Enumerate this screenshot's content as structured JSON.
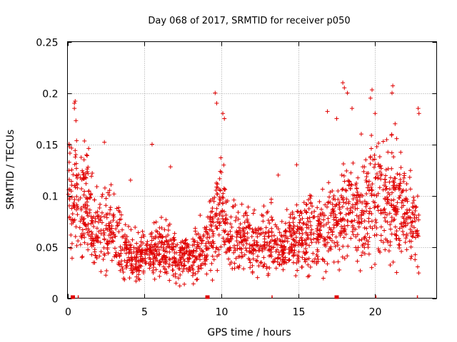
{
  "chart_data": {
    "type": "scatter",
    "title": "Day 068 of 2017, SRMTID for receiver p050",
    "xlabel": "GPS time / hours",
    "ylabel": "SRMTID / TECUs",
    "xlim": [
      0,
      24
    ],
    "ylim": [
      0,
      0.25
    ],
    "grid": true,
    "marker": "+",
    "color": "#e00000",
    "x_ticks": [
      0,
      5,
      10,
      15,
      20
    ],
    "x_tick_labels": [
      "0",
      "5",
      "10",
      "15",
      "20"
    ],
    "y_ticks": [
      0,
      0.05,
      0.1,
      0.15,
      0.2,
      0.25
    ],
    "y_tick_labels": [
      "0",
      "0.05",
      "0.1",
      "0.15",
      "0.2",
      "0.25"
    ],
    "bottom_markers": [
      {
        "x": 0.35,
        "kind": "block"
      },
      {
        "x": 0.7,
        "kind": "tick"
      },
      {
        "x": 9.1,
        "kind": "block"
      },
      {
        "x": 13.3,
        "kind": "tick"
      },
      {
        "x": 17.5,
        "kind": "block"
      },
      {
        "x": 20.05,
        "kind": "tick"
      },
      {
        "x": 22.75,
        "kind": "tick"
      }
    ],
    "envelope_x": [
      0,
      0.5,
      1,
      2,
      3,
      3.5,
      4,
      5,
      5.5,
      6,
      7,
      8,
      9,
      9.5,
      10,
      10.5,
      11,
      12,
      13,
      14,
      15,
      16,
      17,
      18,
      19,
      20,
      21,
      22,
      22.8
    ],
    "envelope_mean": [
      0.1,
      0.1,
      0.095,
      0.065,
      0.07,
      0.055,
      0.04,
      0.04,
      0.045,
      0.05,
      0.04,
      0.04,
      0.055,
      0.07,
      0.09,
      0.06,
      0.055,
      0.055,
      0.06,
      0.05,
      0.06,
      0.065,
      0.065,
      0.085,
      0.08,
      0.1,
      0.1,
      0.09,
      0.065
    ],
    "highlight_points": [
      {
        "x": 0.45,
        "y": 0.19
      },
      {
        "x": 0.5,
        "y": 0.192
      },
      {
        "x": 0.45,
        "y": 0.185
      },
      {
        "x": 0.55,
        "y": 0.173
      },
      {
        "x": 9.6,
        "y": 0.2
      },
      {
        "x": 9.7,
        "y": 0.19
      },
      {
        "x": 10.1,
        "y": 0.18
      },
      {
        "x": 10.2,
        "y": 0.175
      },
      {
        "x": 16.9,
        "y": 0.182
      },
      {
        "x": 17.5,
        "y": 0.175
      },
      {
        "x": 17.9,
        "y": 0.21
      },
      {
        "x": 18.0,
        "y": 0.205
      },
      {
        "x": 18.2,
        "y": 0.2
      },
      {
        "x": 18.5,
        "y": 0.185
      },
      {
        "x": 19.1,
        "y": 0.16
      },
      {
        "x": 19.7,
        "y": 0.195
      },
      {
        "x": 19.8,
        "y": 0.203
      },
      {
        "x": 20.0,
        "y": 0.18
      },
      {
        "x": 21.1,
        "y": 0.2
      },
      {
        "x": 21.15,
        "y": 0.207
      },
      {
        "x": 21.3,
        "y": 0.17
      },
      {
        "x": 22.8,
        "y": 0.185
      },
      {
        "x": 22.85,
        "y": 0.18
      },
      {
        "x": 5.5,
        "y": 0.15
      },
      {
        "x": 6.7,
        "y": 0.128
      },
      {
        "x": 2.4,
        "y": 0.152
      },
      {
        "x": 4.1,
        "y": 0.115
      },
      {
        "x": 13.7,
        "y": 0.12
      },
      {
        "x": 14.9,
        "y": 0.13
      },
      {
        "x": 21.4,
        "y": 0.025
      },
      {
        "x": 7.3,
        "y": 0.012
      },
      {
        "x": 3.7,
        "y": 0.018
      }
    ]
  }
}
